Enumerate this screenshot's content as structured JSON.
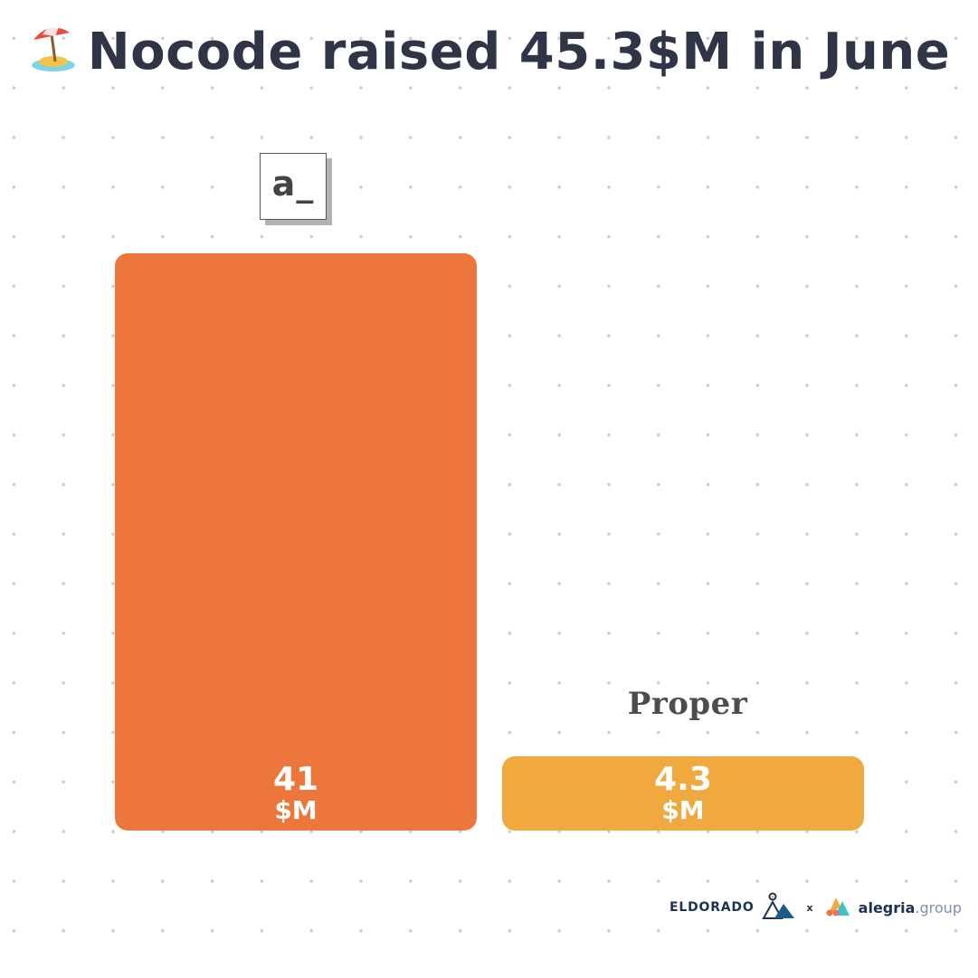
{
  "header": {
    "emoji_icon": "beach-umbrella-icon",
    "title": "Nocode raised 45.3$M in June"
  },
  "colors": {
    "background": "#ffffff",
    "dot_grid": "#c9ccd2",
    "title": "#2f3546",
    "bar_airtable": "#ed763d",
    "bar_proper": "#f0a93e",
    "value_text": "#ffffff"
  },
  "chart_data": {
    "type": "bar",
    "categories": [
      "a_",
      "Proper"
    ],
    "values": [
      41,
      4.3
    ],
    "value_labels": [
      "41",
      "4.3"
    ],
    "unit_label": "$M",
    "title": "Nocode raised 45.3$M in June",
    "xlabel": "",
    "ylabel": "",
    "ylim": [
      0,
      41
    ],
    "grid": false,
    "legend": "none",
    "colors": [
      "#ed763d",
      "#f0a93e"
    ]
  },
  "logos": {
    "airtable_text": "a_",
    "proper_text": "Proper"
  },
  "footer": {
    "brand_left": "ELDORADO",
    "separator": "x",
    "brand_right_main": "alegria",
    "brand_right_suffix": ".group"
  }
}
